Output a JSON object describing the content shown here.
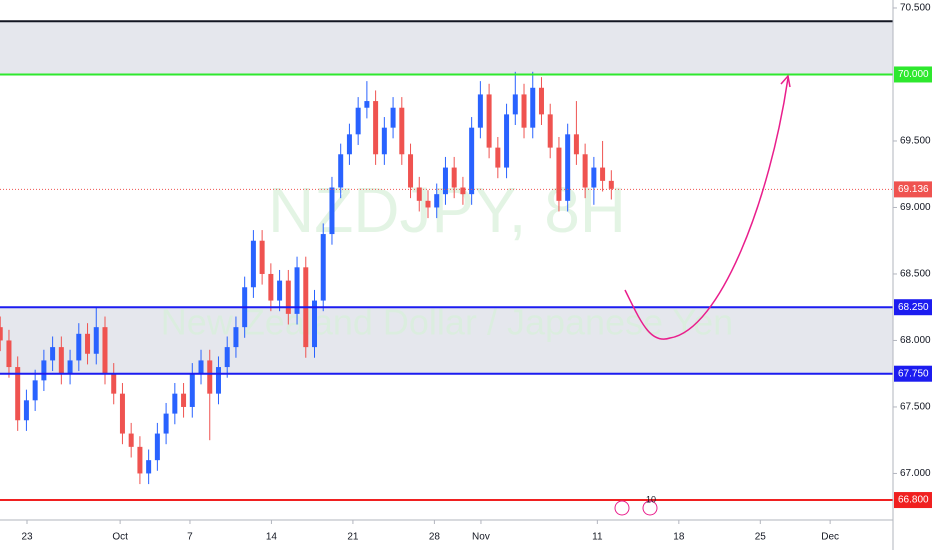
{
  "chart_data": {
    "type": "candlestick",
    "watermark_title": "NZDJPY, 8H",
    "watermark_subtitle": "New Zealand Dollar / Japanese Yen",
    "up_color": "#2962ff",
    "down_color": "#ef5350",
    "x": [
      20.7,
      21.45,
      22.2,
      22.95,
      23.7,
      24.45,
      25.2,
      25.95,
      26.7,
      27.45,
      28.2,
      28.95,
      29.7,
      30.45,
      31.2,
      31.95,
      32.7,
      33.45,
      34.2,
      34.95,
      35.7,
      36.45,
      37.2,
      37.95,
      38.7,
      39.45,
      40.2,
      40.95,
      41.7,
      42.45,
      43.2,
      43.95,
      44.7,
      45.45,
      46.2,
      46.95,
      47.7,
      48.45,
      49.2,
      49.95,
      50.7,
      51.45,
      52.2,
      52.95,
      53.7,
      54.45,
      55.2,
      55.95,
      56.7,
      57.45,
      58.2,
      58.95,
      59.7,
      60.45,
      61.2,
      61.95,
      62.7,
      63.45,
      64.2,
      64.95,
      65.7,
      66.45,
      67.2,
      67.95,
      68.7,
      69.45,
      70.2,
      70.95,
      71.7,
      72.45,
      73.2
    ],
    "open": [
      68.1,
      68.0,
      67.8,
      67.4,
      67.55,
      67.7,
      67.85,
      67.95,
      67.75,
      67.85,
      68.05,
      67.9,
      68.1,
      67.75,
      67.6,
      67.3,
      67.2,
      67.0,
      67.1,
      67.3,
      67.45,
      67.6,
      67.5,
      67.75,
      67.85,
      67.6,
      67.8,
      67.95,
      68.1,
      68.4,
      68.75,
      68.5,
      68.3,
      68.45,
      68.2,
      68.55,
      67.95,
      68.3,
      68.8,
      69.15,
      69.4,
      69.55,
      69.75,
      69.8,
      69.4,
      69.6,
      69.75,
      69.4,
      69.15,
      69.05,
      69.0,
      69.1,
      69.3,
      69.15,
      69.1,
      69.6,
      69.85,
      69.45,
      69.3,
      69.7,
      69.85,
      69.6,
      69.9,
      69.7,
      69.45,
      69.05,
      69.55,
      69.4,
      69.15,
      69.3,
      69.2
    ],
    "high": [
      68.18,
      68.08,
      67.88,
      67.63,
      67.78,
      67.93,
      68.03,
      68.03,
      67.93,
      68.13,
      68.13,
      68.25,
      68.18,
      67.83,
      67.68,
      67.38,
      67.28,
      67.18,
      67.38,
      67.53,
      67.68,
      67.68,
      67.83,
      67.93,
      67.93,
      67.88,
      68.03,
      68.18,
      68.48,
      68.83,
      68.83,
      68.58,
      68.53,
      68.53,
      68.63,
      68.63,
      68.38,
      68.88,
      69.23,
      69.48,
      69.63,
      69.83,
      69.95,
      69.88,
      69.68,
      69.83,
      69.83,
      69.48,
      69.23,
      69.13,
      69.18,
      69.38,
      69.38,
      69.23,
      69.68,
      69.95,
      69.93,
      69.53,
      69.78,
      70.02,
      69.93,
      70.02,
      69.98,
      69.78,
      69.53,
      69.63,
      69.8,
      69.48,
      69.38,
      69.5,
      69.28
    ],
    "low": [
      67.92,
      67.72,
      67.32,
      67.32,
      67.47,
      67.62,
      67.77,
      67.67,
      67.67,
      67.77,
      67.82,
      67.82,
      67.67,
      67.52,
      67.22,
      67.12,
      66.92,
      66.92,
      67.02,
      67.22,
      67.37,
      67.42,
      67.42,
      67.67,
      67.25,
      67.52,
      67.72,
      67.87,
      68.02,
      68.32,
      68.42,
      68.22,
      68.22,
      68.12,
      68.12,
      67.87,
      67.87,
      68.22,
      68.72,
      69.07,
      69.32,
      69.47,
      69.67,
      69.32,
      69.32,
      69.52,
      69.32,
      69.07,
      68.97,
      68.92,
      68.92,
      69.02,
      69.07,
      69.02,
      69.02,
      69.52,
      69.37,
      69.22,
      69.22,
      69.62,
      69.52,
      69.52,
      69.62,
      69.37,
      68.97,
      68.97,
      69.32,
      69.07,
      69.02,
      69.12,
      69.06
    ],
    "close": [
      68.0,
      67.8,
      67.4,
      67.55,
      67.7,
      67.85,
      67.95,
      67.75,
      67.85,
      68.05,
      67.9,
      68.1,
      67.75,
      67.6,
      67.3,
      67.2,
      67.0,
      67.1,
      67.3,
      67.45,
      67.6,
      67.5,
      67.75,
      67.85,
      67.6,
      67.8,
      67.95,
      68.1,
      68.4,
      68.75,
      68.5,
      68.3,
      68.45,
      68.2,
      68.55,
      67.95,
      68.3,
      68.8,
      69.15,
      69.4,
      69.55,
      69.75,
      69.8,
      69.4,
      69.6,
      69.75,
      69.4,
      69.15,
      69.05,
      69.0,
      69.1,
      69.3,
      69.15,
      69.1,
      69.6,
      69.85,
      69.45,
      69.3,
      69.7,
      69.85,
      69.6,
      69.9,
      69.7,
      69.45,
      69.05,
      69.55,
      69.4,
      69.15,
      69.3,
      69.2,
      69.14
    ],
    "xlim": [
      20.68,
      97.4
    ],
    "ylim": [
      66.65,
      70.56
    ],
    "xticks": [
      {
        "value": 23,
        "label": "23"
      },
      {
        "value": 31,
        "label": "Oct"
      },
      {
        "value": 37,
        "label": "7"
      },
      {
        "value": 44,
        "label": "14"
      },
      {
        "value": 51,
        "label": "21"
      },
      {
        "value": 58,
        "label": "28"
      },
      {
        "value": 62,
        "label": "Nov"
      },
      {
        "value": 72,
        "label": "11"
      },
      {
        "value": 79,
        "label": "18"
      },
      {
        "value": 86,
        "label": "25"
      },
      {
        "value": 92,
        "label": "Dec"
      }
    ],
    "yticks": [
      {
        "value": 70.5,
        "label": "70.500"
      },
      {
        "value": 69.5,
        "label": "69.500"
      },
      {
        "value": 69,
        "label": "69.000"
      },
      {
        "value": 68.5,
        "label": "68.500"
      },
      {
        "value": 68,
        "label": "68.000"
      },
      {
        "value": 67.5,
        "label": "67.500"
      },
      {
        "value": 67,
        "label": "67.000"
      }
    ],
    "zones": [
      {
        "from": 70.0,
        "to": 70.4
      },
      {
        "from": 67.75,
        "to": 68.25
      }
    ],
    "levels": [
      {
        "value": 70.4,
        "color": "#131722"
      },
      {
        "value": 70.0,
        "label": "70.000",
        "color": "#2ee82e"
      },
      {
        "value": 68.25,
        "label": "68.250",
        "color": "#1c1cf0"
      },
      {
        "value": 67.75,
        "label": "67.750",
        "color": "#1c1cf0"
      },
      {
        "value": 66.8,
        "label": "66.800",
        "color": "#f02020"
      }
    ],
    "last_price": {
      "value": 69.136,
      "label": "69.136",
      "color": "#ef5350"
    },
    "events_label": "10"
  }
}
